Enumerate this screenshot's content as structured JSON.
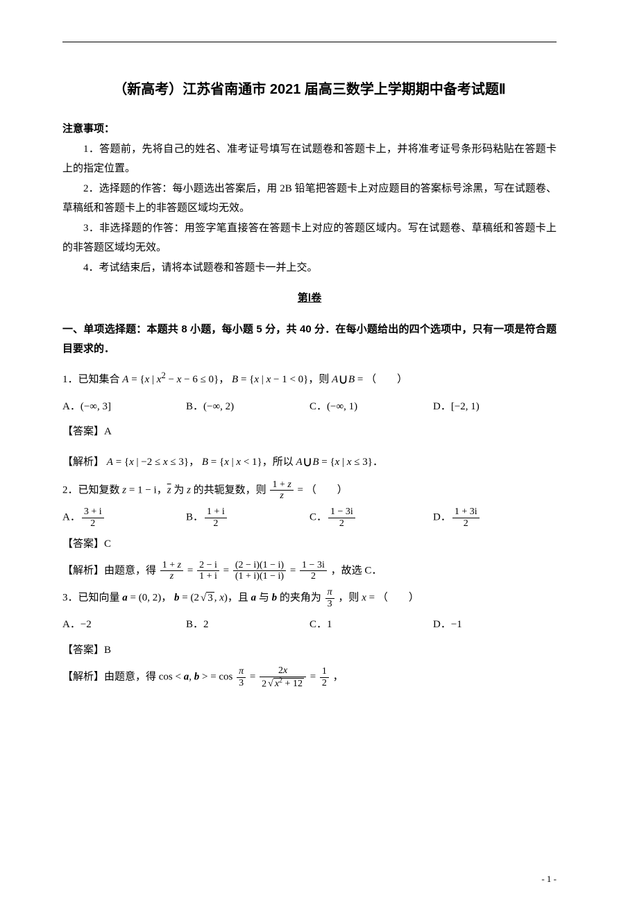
{
  "title": "（新高考）江苏省南通市 2021 届高三数学上学期期中备考试题Ⅱ",
  "notice_header": "注意事项：",
  "notices": [
    "1．答题前，先将自己的姓名、准考证号填写在试题卷和答题卡上，并将准考证号条形码粘贴在答题卡上的指定位置。",
    "2．选择题的作答：每小题选出答案后，用 2B 铅笔把答题卡上对应题目的答案标号涂黑，写在试题卷、草稿纸和答题卡上的非答题区域均无效。",
    "3．非选择题的作答：用签字笔直接答在答题卡上对应的答题区域内。写在试题卷、草稿纸和答题卡上的非答题区域均无效。",
    "4．考试结束后，请将本试题卷和答题卡一并上交。"
  ],
  "volume": "第Ⅰ卷",
  "section_instruction": "一、单项选择题：本题共 8 小题，每小题 5 分，共 40 分．在每小题给出的四个选项中，只有一项是符合题目要求的．",
  "q1": {
    "stem_pre": "1．已知集合 ",
    "stem_post": "（　　）",
    "optA": "A．",
    "optB": "B．",
    "optC": "C．",
    "optD": "D．",
    "answer": "【答案】A",
    "analysis_pre": "【解析】"
  },
  "q2": {
    "stem_pre": "2．已知复数 ",
    "stem_post": "（　　）",
    "optA": "A．",
    "optB": "B．",
    "optC": "C．",
    "optD": "D．",
    "answer": "【答案】C",
    "analysis_pre": "【解析】由题意，得 ",
    "analysis_post": "，故选 C．"
  },
  "q3": {
    "stem_pre": "3．已知向量 ",
    "stem_post": "（　　）",
    "optA": "A．−2",
    "optB": "B．2",
    "optC": "C．1",
    "optD": "D．−1",
    "answer": "【答案】B",
    "analysis_pre": "【解析】由题意，得 "
  },
  "page_number": "- 1 -"
}
